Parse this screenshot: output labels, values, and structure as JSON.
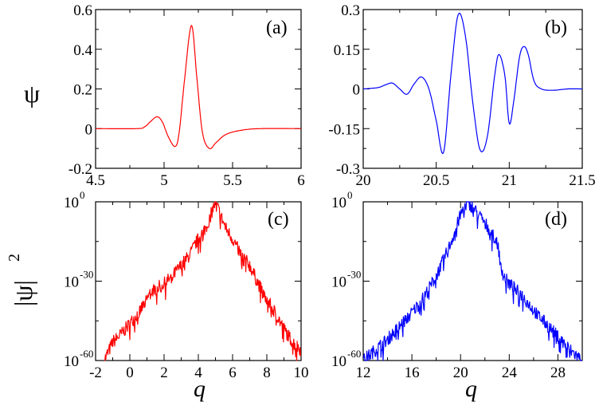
{
  "figure": {
    "ylabel_top": "ψ",
    "ylabel_bottom": "|ψ|",
    "ylabel_bottom_exp": "2",
    "xlabel": "q"
  },
  "chart_data": [
    {
      "type": "line",
      "panel_label": "(a)",
      "color": "#ff0000",
      "xlim": [
        4.5,
        6
      ],
      "ylim": [
        -0.2,
        0.6
      ],
      "xticks": [
        4.5,
        5,
        5.5,
        6
      ],
      "xtick_labels": [
        "4.5",
        "5",
        "5.5",
        "6"
      ],
      "yticks": [
        -0.2,
        0,
        0.2,
        0.4,
        0.6
      ],
      "ytick_labels": [
        "-0.2",
        "0",
        "0.2",
        "0.4",
        "0.6"
      ],
      "x": [
        4.5,
        4.8,
        4.86,
        4.9,
        4.95,
        4.99,
        5.03,
        5.08,
        5.11,
        5.15,
        5.2,
        5.24,
        5.28,
        5.33,
        5.38,
        5.45,
        5.55,
        5.7,
        6.0
      ],
      "y": [
        0,
        0,
        0.01,
        0.035,
        0.06,
        0.03,
        -0.04,
        -0.09,
        -0.02,
        0.25,
        0.52,
        0.25,
        -0.02,
        -0.1,
        -0.07,
        -0.03,
        -0.01,
        0,
        0
      ]
    },
    {
      "type": "line",
      "panel_label": "(b)",
      "color": "#0000ff",
      "xlim": [
        20,
        21.5
      ],
      "ylim": [
        -0.3,
        0.3
      ],
      "xticks": [
        20,
        20.5,
        21,
        21.5
      ],
      "xtick_labels": [
        "20",
        "20.5",
        "21",
        "21.5"
      ],
      "yticks": [
        -0.3,
        -0.15,
        0,
        0.15,
        0.3
      ],
      "ytick_labels": [
        "-0.3",
        "-0.15",
        "0",
        "0.15",
        "0.3"
      ],
      "x": [
        20.0,
        20.1,
        20.15,
        20.2,
        20.25,
        20.3,
        20.35,
        20.4,
        20.45,
        20.5,
        20.55,
        20.6,
        20.65,
        20.7,
        20.75,
        20.8,
        20.85,
        20.9,
        20.93,
        20.97,
        21.0,
        21.03,
        21.07,
        21.1,
        21.13,
        21.17,
        21.22,
        21.3,
        21.4,
        21.5
      ],
      "y": [
        0,
        0.005,
        0.015,
        0.022,
        0.0,
        -0.02,
        0.02,
        0.045,
        0.0,
        -0.12,
        -0.24,
        0.05,
        0.28,
        0.2,
        -0.05,
        -0.23,
        -0.18,
        0.05,
        0.13,
        0.05,
        -0.13,
        -0.05,
        0.12,
        0.16,
        0.13,
        0.03,
        0.0,
        -0.005,
        0,
        0
      ]
    },
    {
      "type": "line",
      "panel_label": "(c)",
      "color": "#ff0000",
      "yscale": "log",
      "xlim": [
        -2,
        10
      ],
      "ylim": [
        -60,
        0
      ],
      "xticks": [
        -2,
        0,
        2,
        4,
        6,
        8,
        10
      ],
      "xtick_labels": [
        "-2",
        "0",
        "2",
        "4",
        "6",
        "8",
        "10"
      ],
      "yticks": [
        0,
        -30,
        -60
      ],
      "ytick_base": "10",
      "ytick_exponents": [
        "0",
        "-30",
        "-60"
      ],
      "x": [
        -1.5,
        -1.2,
        -1.0,
        -0.5,
        0.0,
        0.5,
        1.0,
        1.2,
        1.5,
        2.0,
        2.5,
        3.0,
        3.5,
        4.0,
        4.5,
        5.0,
        5.3,
        5.6,
        6.0,
        6.5,
        7.0,
        7.5,
        8.0,
        8.5,
        9.0,
        9.5,
        10.0
      ],
      "y": [
        -60,
        -56,
        -53,
        -50,
        -46,
        -42,
        -37,
        -34,
        -33,
        -31,
        -28,
        -24,
        -20,
        -14,
        -9,
        0,
        -5,
        -10,
        -14,
        -20,
        -24,
        -31,
        -37,
        -42,
        -48,
        -53,
        -56
      ],
      "noise": 2.5
    },
    {
      "type": "line",
      "panel_label": "(d)",
      "color": "#0000ff",
      "yscale": "log",
      "xlim": [
        12,
        30
      ],
      "ylim": [
        -60,
        0
      ],
      "xticks": [
        12,
        16,
        20,
        24,
        28
      ],
      "xtick_labels": [
        "12",
        "16",
        "20",
        "24",
        "28"
      ],
      "yticks": [
        0,
        -30,
        -60
      ],
      "ytick_base": "10",
      "ytick_exponents": [
        "0",
        "-30",
        "-60"
      ],
      "x": [
        12.0,
        13.0,
        14.0,
        15.0,
        16.0,
        17.0,
        18.0,
        19.0,
        20.0,
        20.5,
        21.0,
        22.0,
        23.0,
        23.5,
        24.0,
        25.0,
        26.0,
        27.0,
        28.0,
        29.0,
        30.0
      ],
      "y": [
        -60,
        -56,
        -52,
        -47,
        -42,
        -36,
        -28,
        -18,
        -5,
        0,
        -2,
        -8,
        -15,
        -28,
        -31,
        -35,
        -41,
        -46,
        -51,
        -56,
        -60
      ],
      "noise": 2.5
    }
  ]
}
